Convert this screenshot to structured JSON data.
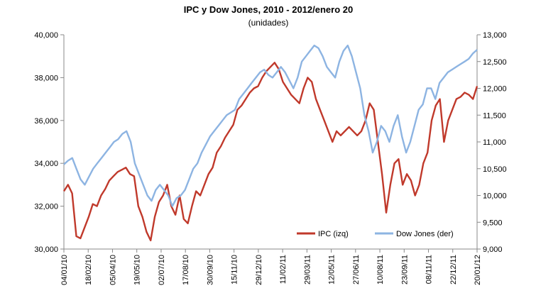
{
  "chart_data": {
    "type": "line",
    "title": "IPC y Dow Jones, 2010 - 2012/enero 20",
    "subtitle": "(unidades)",
    "x_tick_labels": [
      "04/01/10",
      "18/02/10",
      "05/04/10",
      "19/05/10",
      "02/07/10",
      "17/08/10",
      "30/09/10",
      "15/11/10",
      "29/12/10",
      "11/02/11",
      "29/03/11",
      "12/05/11",
      "27/06/11",
      "10/08/11",
      "23/09/11",
      "08/11/11",
      "22/12/11",
      "20/01/12"
    ],
    "y_left": {
      "ticks": [
        "30,000",
        "32,000",
        "34,000",
        "36,000",
        "38,000",
        "40,000"
      ],
      "range": [
        30000,
        40000
      ]
    },
    "y_right": {
      "ticks": [
        "9,000",
        "9,500",
        "10,000",
        "10,500",
        "11,000",
        "11,500",
        "12,000",
        "12,500",
        "13,000"
      ],
      "range": [
        9000,
        13000
      ]
    },
    "grid": false,
    "legend_position": "bottom-right",
    "series": [
      {
        "name": "IPC (izq)",
        "axis": "left",
        "color": "#c0392b",
        "values": [
          32700,
          33000,
          32600,
          30600,
          30500,
          31000,
          31500,
          32100,
          32000,
          32500,
          32800,
          33200,
          33400,
          33600,
          33700,
          33800,
          33500,
          33400,
          32000,
          31500,
          30800,
          30400,
          31500,
          32200,
          32500,
          33000,
          32000,
          31600,
          32500,
          31400,
          31200,
          32000,
          32700,
          32500,
          33000,
          33500,
          33800,
          34500,
          34800,
          35200,
          35500,
          35800,
          36500,
          36700,
          37000,
          37300,
          37500,
          37600,
          38000,
          38300,
          38500,
          38700,
          38400,
          37800,
          37500,
          37200,
          37000,
          36800,
          37500,
          38000,
          37800,
          37000,
          36500,
          36000,
          35500,
          35000,
          35500,
          35300,
          35500,
          35700,
          35500,
          35300,
          35500,
          36000,
          36800,
          36500,
          35000,
          33500,
          31700,
          33000,
          34000,
          34200,
          33000,
          33500,
          33200,
          32500,
          33000,
          34000,
          34500,
          36000,
          36700,
          37000,
          35000,
          36000,
          36500,
          37000,
          37100,
          37300,
          37200,
          37000,
          37600
        ]
      },
      {
        "name": "Dow Jones (der)",
        "axis": "right",
        "color": "#8db4e2",
        "values": [
          10580,
          10650,
          10700,
          10500,
          10300,
          10200,
          10350,
          10500,
          10600,
          10700,
          10800,
          10900,
          11000,
          11050,
          11150,
          11200,
          11000,
          10600,
          10400,
          10200,
          10000,
          9900,
          10100,
          10200,
          10100,
          10000,
          9800,
          9950,
          10000,
          10100,
          10300,
          10500,
          10600,
          10800,
          10950,
          11100,
          11200,
          11300,
          11400,
          11500,
          11550,
          11600,
          11800,
          11900,
          12000,
          12100,
          12200,
          12300,
          12350,
          12250,
          12200,
          12300,
          12400,
          12300,
          12150,
          12000,
          12200,
          12500,
          12600,
          12700,
          12800,
          12750,
          12600,
          12400,
          12300,
          12200,
          12500,
          12700,
          12800,
          12600,
          12300,
          12000,
          11500,
          11200,
          10800,
          11000,
          11300,
          11200,
          11000,
          11300,
          11500,
          11100,
          10800,
          11000,
          11300,
          11600,
          11700,
          12000,
          12000,
          11800,
          12100,
          12200,
          12300,
          12350,
          12400,
          12450,
          12500,
          12550,
          12650,
          12720
        ]
      }
    ]
  }
}
